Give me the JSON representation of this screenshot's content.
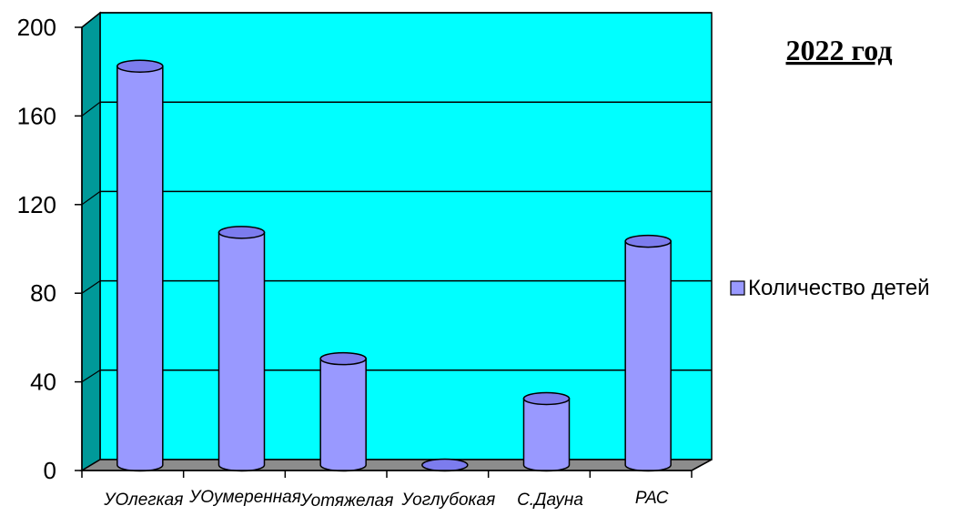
{
  "chart_data": {
    "type": "bar",
    "style": "3d-cylinder",
    "title": "2022 год",
    "categories": [
      "УОлегкая",
      "УОумеренная",
      "Уотяжелая",
      "Уоглубокая",
      "С.Дауна",
      "РАС"
    ],
    "series": [
      {
        "name": "Количество детей",
        "values": [
          180,
          105,
          48,
          0,
          30,
          101
        ]
      }
    ],
    "ylim": [
      0,
      200
    ],
    "yticks": [
      0,
      40,
      80,
      120,
      160,
      200
    ],
    "grid": true,
    "legend": "right",
    "colors": {
      "plot_back": "#00ffff",
      "plot_side": "#009999",
      "floor": "#8c8c8c",
      "bar_body": "#9999ff",
      "bar_top": "#7c7cee",
      "bar_edge": "#000000",
      "gridline": "#000000"
    }
  }
}
